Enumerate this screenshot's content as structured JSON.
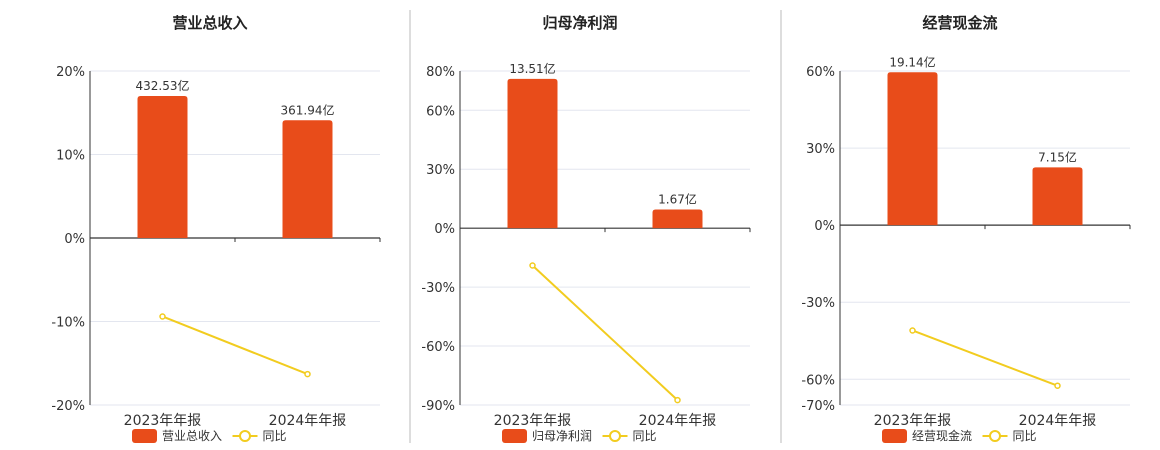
{
  "legend_line_label": "同比",
  "colors": {
    "bar": "#E84C1A",
    "line": "#F2CC1F",
    "grid": "#E3E6EF",
    "axis": "#333333",
    "divider": "#BBBBBB"
  },
  "chart_data": [
    {
      "type": "bar",
      "title": "营业总收入",
      "categories": [
        "2023年年报",
        "2024年年报"
      ],
      "bar_series_name": "营业总收入",
      "bar_labels": [
        "432.53亿",
        "361.94亿"
      ],
      "bar_values_pct": [
        17.0,
        14.1
      ],
      "line_series_name": "同比",
      "line_values_pct": [
        -9.4,
        -16.3
      ],
      "yticks": [
        20,
        10,
        0,
        -10,
        -20
      ],
      "ylim": [
        -20,
        20
      ]
    },
    {
      "type": "bar",
      "title": "归母净利润",
      "categories": [
        "2023年年报",
        "2024年年报"
      ],
      "bar_series_name": "归母净利润",
      "bar_labels": [
        "13.51亿",
        "1.67亿"
      ],
      "bar_values_pct": [
        76,
        9.5
      ],
      "line_series_name": "同比",
      "line_values_pct": [
        -19,
        -87.5
      ],
      "yticks": [
        80,
        60,
        30,
        0,
        -30,
        -60,
        -90
      ],
      "ylim": [
        -90,
        80
      ]
    },
    {
      "type": "bar",
      "title": "经营现金流",
      "categories": [
        "2023年年报",
        "2024年年报"
      ],
      "bar_series_name": "经营现金流",
      "bar_labels": [
        "19.14亿",
        "7.15亿"
      ],
      "bar_values_pct": [
        59.5,
        22.5
      ],
      "line_series_name": "同比",
      "line_values_pct": [
        -41,
        -62.5
      ],
      "yticks": [
        60,
        30,
        0,
        -30,
        -60,
        -70
      ],
      "ylim": [
        -70,
        60
      ]
    }
  ]
}
